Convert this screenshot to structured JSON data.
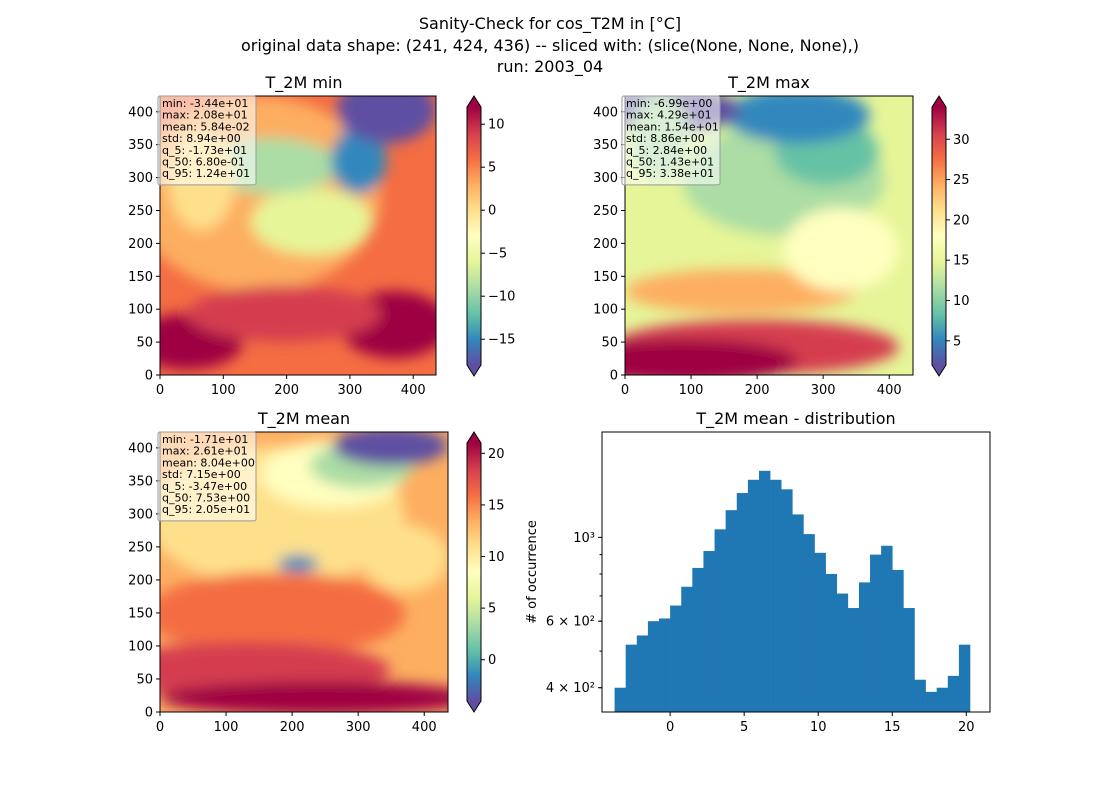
{
  "title_lines": [
    "Sanity-Check for cos_T2M in [°C]",
    "original data shape: (241, 424, 436) -- sliced with: (slice(None, None, None),)",
    "run: 2003_04"
  ],
  "colormap": [
    "#5e4fa2",
    "#3288bd",
    "#66c2a5",
    "#abdda4",
    "#e6f598",
    "#ffffbf",
    "#fee08b",
    "#fdae61",
    "#f46d43",
    "#d53e4f",
    "#9e0142"
  ],
  "hist_color": "#1f77b4",
  "chart_data": [
    {
      "type": "heatmap",
      "title": "T_2M min",
      "x_ticks": [
        "0",
        "100",
        "200",
        "300",
        "400"
      ],
      "y_ticks": [
        "0",
        "50",
        "100",
        "150",
        "200",
        "250",
        "300",
        "350",
        "400"
      ],
      "xlim": [
        0,
        436
      ],
      "ylim": [
        0,
        424
      ],
      "colorbar_range": [
        -18,
        12
      ],
      "colorbar_ticks": [
        "10",
        "5",
        "0",
        "−5",
        "−10",
        "−15"
      ],
      "stats": [
        "min: -3.44e+01",
        "max: 2.08e+01",
        "mean: 5.84e-02",
        "std: 8.94e+00",
        "q_5: -1.73e+01",
        "q_50: 6.80e-01",
        "q_95: 1.24e+01"
      ]
    },
    {
      "type": "heatmap",
      "title": "T_2M max",
      "x_ticks": [
        "0",
        "100",
        "200",
        "300",
        "400"
      ],
      "y_ticks": [
        "0",
        "50",
        "100",
        "150",
        "200",
        "250",
        "300",
        "350",
        "400"
      ],
      "xlim": [
        0,
        436
      ],
      "ylim": [
        0,
        424
      ],
      "colorbar_range": [
        2,
        34
      ],
      "colorbar_ticks": [
        "30",
        "25",
        "20",
        "15",
        "10",
        "5"
      ],
      "stats": [
        "min: -6.99e+00",
        "max: 4.29e+01",
        "mean: 1.54e+01",
        "std: 8.86e+00",
        "q_5: 2.84e+00",
        "q_50: 1.43e+01",
        "q_95: 3.38e+01"
      ]
    },
    {
      "type": "heatmap",
      "title": "T_2M mean",
      "x_ticks": [
        "0",
        "100",
        "200",
        "300",
        "400"
      ],
      "y_ticks": [
        "0",
        "50",
        "100",
        "150",
        "200",
        "250",
        "300",
        "350",
        "400"
      ],
      "xlim": [
        0,
        436
      ],
      "ylim": [
        0,
        424
      ],
      "colorbar_range": [
        -4,
        21
      ],
      "colorbar_ticks": [
        "20",
        "15",
        "10",
        "5",
        "0"
      ],
      "stats": [
        "min: -1.71e+01",
        "max: 2.61e+01",
        "mean: 8.04e+00",
        "std: 7.15e+00",
        "q_5: -3.47e+00",
        "q_50: 7.53e+00",
        "q_95: 2.05e+01"
      ]
    },
    {
      "type": "bar",
      "title": "T_2M mean - distribution",
      "ylabel": "# of occurrence",
      "y_scale": "log",
      "xlim": [
        -4.6,
        21.6
      ],
      "ylim": [
        345,
        1900
      ],
      "x_ticks": [
        "0",
        "5",
        "10",
        "15",
        "20"
      ],
      "y_ticks": [
        "10³",
        "6 × 10²",
        "4 × 10²"
      ],
      "bin_centers": [
        -3.375,
        -2.625,
        -1.875,
        -1.125,
        -0.375,
        0.375,
        1.125,
        1.875,
        2.625,
        3.375,
        4.125,
        4.875,
        5.625,
        6.375,
        7.125,
        7.875,
        8.625,
        9.375,
        10.125,
        10.875,
        11.625,
        12.375,
        13.125,
        13.875,
        14.625,
        15.375,
        16.125,
        16.875,
        17.625,
        18.375,
        19.125,
        19.875
      ],
      "bin_width": 0.75,
      "values": [
        400,
        520,
        550,
        600,
        610,
        660,
        740,
        830,
        920,
        1050,
        1180,
        1310,
        1420,
        1500,
        1420,
        1340,
        1150,
        1020,
        910,
        800,
        710,
        650,
        760,
        900,
        950,
        820,
        650,
        420,
        390,
        400,
        430,
        520
      ]
    }
  ]
}
